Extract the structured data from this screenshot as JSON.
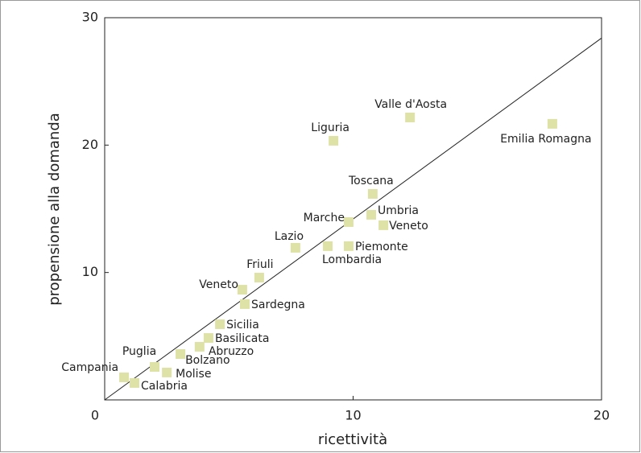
{
  "chart_data": {
    "type": "scatter",
    "x_label": "ricettività",
    "y_label": "propensione alla domanda",
    "xlim": [
      0,
      20
    ],
    "ylim": [
      0,
      30
    ],
    "xticks": [
      0,
      10,
      20
    ],
    "yticks": [
      10,
      20,
      30
    ],
    "color": "#dfe2a6",
    "labels": [
      "Valle d'Aosta",
      "Emilia Romagna",
      "Liguria",
      "Toscana",
      "Umbria",
      "Veneto",
      "Marche",
      "Piemonte",
      "Lombardia",
      "Lazio",
      "Friuli",
      "Veneto",
      "Sardegna",
      "Sicilia",
      "Basilicata",
      "Abruzzo",
      "Bolzano",
      "Puglia",
      "Molise",
      "Campania",
      "Calabria"
    ],
    "x": [
      12.29,
      18.02,
      9.21,
      10.79,
      10.73,
      11.22,
      9.82,
      9.82,
      8.98,
      7.68,
      6.22,
      5.54,
      5.64,
      4.64,
      4.18,
      3.82,
      3.05,
      2.01,
      2.5,
      0.78,
      1.2
    ],
    "values": [
      22.17,
      21.67,
      20.34,
      16.17,
      14.53,
      13.71,
      13.96,
      12.07,
      12.07,
      11.94,
      9.6,
      8.65,
      7.52,
      5.94,
      4.86,
      4.17,
      3.6,
      2.59,
      2.15,
      1.77,
      1.33
    ],
    "reference_line": {
      "x": [
        0,
        20
      ],
      "y": [
        0,
        28.4
      ]
    }
  }
}
